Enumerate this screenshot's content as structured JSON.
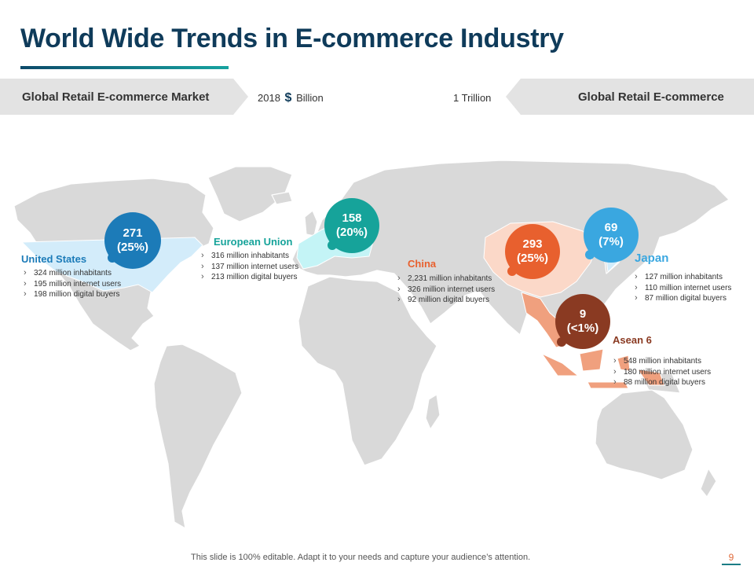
{
  "title": "World Wide Trends in E-commerce Industry",
  "banner_left": "Global Retail E-commerce Market",
  "banner_right": "Global Retail E-commerce",
  "header_year": "2018",
  "header_currency": "$",
  "header_unit": "Billion",
  "header_total": "1 Trillion",
  "regions": {
    "us": {
      "name": "United States",
      "value": "271",
      "share": "(25%)",
      "color": "#1c7bb8",
      "stats": [
        "324 million  inhabitants",
        "195 million  internet users",
        "198 million  digital buyers"
      ]
    },
    "eu": {
      "name": "European Union",
      "value": "158",
      "share": "(20%)",
      "color": "#16a39a",
      "stats": [
        "316 million  inhabitants",
        "137 million  internet users",
        "213 million  digital buyers"
      ]
    },
    "china": {
      "name": "China",
      "value": "293",
      "share": "(25%)",
      "color": "#e8602e",
      "stats": [
        "2,231 million  inhabitants",
        "326 million  internet users",
        "92 million  digital buyers"
      ]
    },
    "japan": {
      "name": "Japan",
      "value": "69",
      "share": "(7%)",
      "color": "#3aa7e0",
      "stats": [
        "127 million  inhabitants",
        "110 million  internet users",
        "87 million  digital buyers"
      ]
    },
    "asean": {
      "name": "Asean 6",
      "value": "9",
      "share": "(<1%)",
      "color": "#8a3a22",
      "stats": [
        "548 million  inhabitants",
        "180 million  internet users",
        "88 million  digital buyers"
      ]
    }
  },
  "footer": "This slide is 100% editable. Adapt it to your needs and capture your audience’s attention.",
  "page_number": "9"
}
